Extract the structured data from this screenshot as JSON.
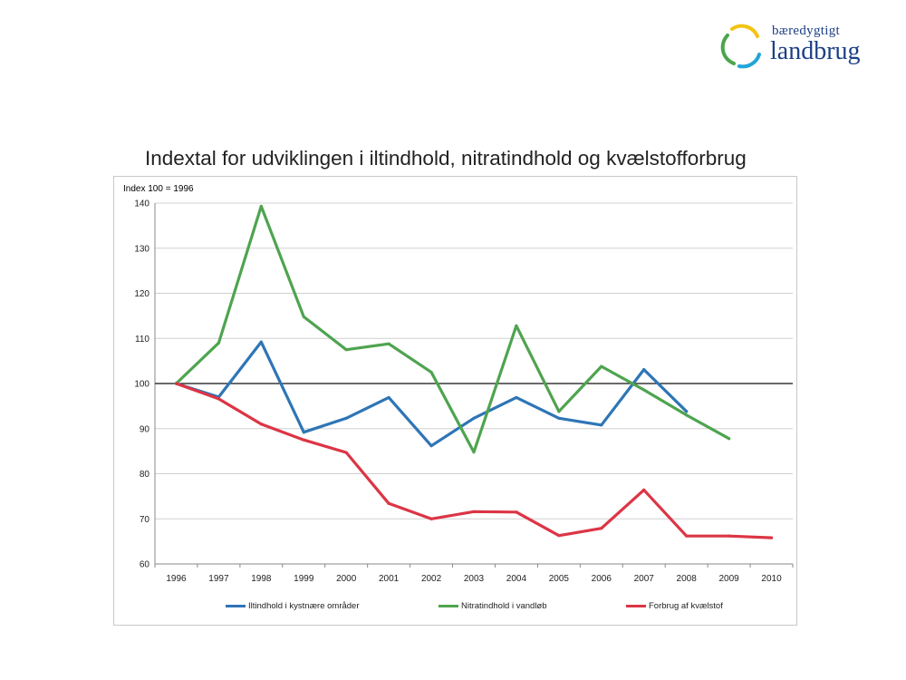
{
  "logo": {
    "line1": "bæredygtigt",
    "line2": "landbrug",
    "colors": [
      "#f3c313",
      "#23a5d8",
      "#4aa64b"
    ]
  },
  "chart": {
    "title": "Indextal for udviklingen i iltindhold, nitratindhold og kvælstofforbrug",
    "note": "Index 100 = 1996"
  },
  "chart_data": {
    "type": "line",
    "title": "Indextal for udviklingen i iltindhold, nitratindhold og kvælstofforbrug",
    "xlabel": "",
    "ylabel": "",
    "categories": [
      "1996",
      "1997",
      "1998",
      "1999",
      "2000",
      "2001",
      "2002",
      "2003",
      "2004",
      "2005",
      "2006",
      "2007",
      "2008",
      "2009",
      "2010"
    ],
    "ylim": [
      60,
      140
    ],
    "yticks": [
      60,
      70,
      80,
      90,
      100,
      110,
      120,
      130,
      140
    ],
    "reference_line": 100,
    "grid": true,
    "legend_position": "bottom",
    "series": [
      {
        "name": "Iltindhold i kystnære områder",
        "color": "#2e75b6",
        "values": [
          100,
          97,
          109.2,
          89.2,
          92.3,
          96.9,
          86.2,
          92.3,
          96.9,
          92.3,
          90.8,
          103.1,
          93.8,
          null,
          null
        ]
      },
      {
        "name": "Nitratindhold i vandløb",
        "color": "#4ea44f",
        "values": [
          100,
          109,
          139.3,
          114.8,
          107.5,
          108.8,
          102.5,
          84.8,
          112.8,
          93.8,
          103.8,
          98.6,
          93,
          87.8,
          null
        ]
      },
      {
        "name": "Forbrug af kvælstof",
        "color": "#dc3545",
        "values": [
          100,
          96.6,
          91,
          87.5,
          84.7,
          73.4,
          70,
          71.6,
          71.5,
          66.3,
          67.9,
          76.4,
          66.2,
          66.2,
          65.8
        ]
      }
    ]
  }
}
